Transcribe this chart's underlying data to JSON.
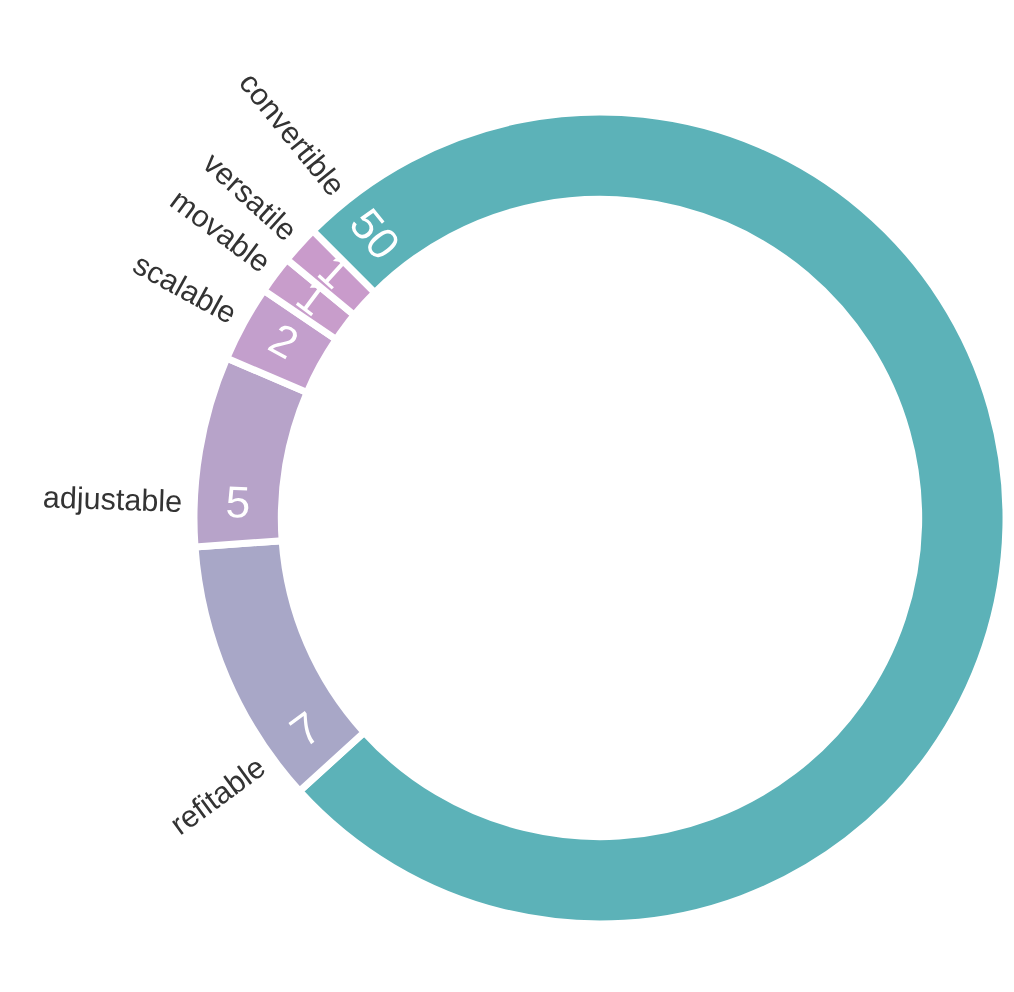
{
  "chart_data": {
    "type": "donut",
    "categories": [
      "convertible",
      "refitable",
      "adjustable",
      "scalable",
      "movable",
      "versatile"
    ],
    "values": [
      50,
      7,
      5,
      2,
      1,
      1
    ],
    "colors": [
      "#5cb2b8",
      "#a8a7c7",
      "#b7a3c9",
      "#c39fcc",
      "#c89dcb",
      "#c99bcb"
    ],
    "data_labels": true
  }
}
